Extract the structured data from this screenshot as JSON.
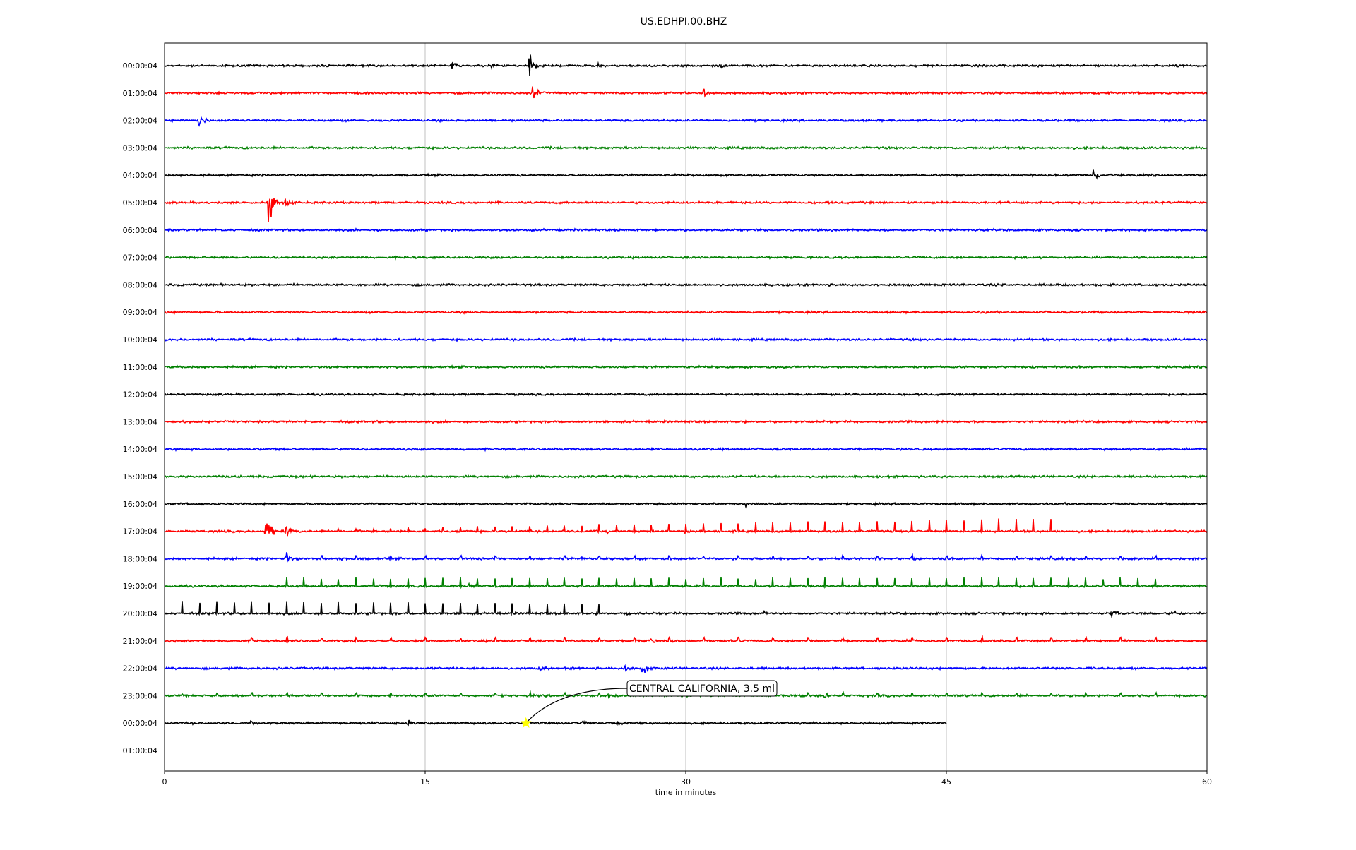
{
  "chart_data": {
    "type": "line",
    "title": "US.EDHPI.00.BHZ",
    "xlabel": "time in minutes",
    "xlim": [
      0,
      60
    ],
    "x_ticks": [
      0,
      15,
      30,
      45,
      60
    ],
    "x_tick_labels": [
      "0",
      "15",
      "30",
      "45",
      "60"
    ],
    "grid_x": true,
    "row_labels": [
      "00:00:04",
      "01:00:04",
      "02:00:04",
      "03:00:04",
      "04:00:04",
      "05:00:04",
      "06:00:04",
      "07:00:04",
      "08:00:04",
      "09:00:04",
      "10:00:04",
      "11:00:04",
      "12:00:04",
      "13:00:04",
      "14:00:04",
      "15:00:04",
      "16:00:04",
      "17:00:04",
      "18:00:04",
      "19:00:04",
      "20:00:04",
      "21:00:04",
      "22:00:04",
      "23:00:04",
      "00:00:04",
      "01:00:04"
    ],
    "row_colors": [
      "#000000",
      "#ff0000",
      "#0000ff",
      "#008000"
    ],
    "traces": [
      {
        "row": 0,
        "end_min": 60,
        "events": [
          {
            "t": 16.5,
            "a": 1.0
          },
          {
            "t": 18.8,
            "a": 0.6
          },
          {
            "t": 21.0,
            "a": 2.0
          },
          {
            "t": 25.0,
            "a": 0.4
          },
          {
            "t": 32.0,
            "a": 0.5
          }
        ]
      },
      {
        "row": 1,
        "end_min": 60,
        "events": [
          {
            "t": 21.2,
            "a": 1.2
          },
          {
            "t": 31.0,
            "a": 1.0
          }
        ]
      },
      {
        "row": 2,
        "end_min": 60,
        "events": [
          {
            "t": 2.0,
            "a": 1.0
          }
        ]
      },
      {
        "row": 3,
        "end_min": 60,
        "events": []
      },
      {
        "row": 4,
        "end_min": 60,
        "events": [
          {
            "t": 53.5,
            "a": 1.0
          }
        ]
      },
      {
        "row": 5,
        "end_min": 60,
        "events": [
          {
            "t": 6.0,
            "a": 3.0
          },
          {
            "t": 7.0,
            "a": 1.0
          }
        ]
      },
      {
        "row": 6,
        "end_min": 60,
        "events": []
      },
      {
        "row": 7,
        "end_min": 60,
        "events": []
      },
      {
        "row": 8,
        "end_min": 60,
        "events": []
      },
      {
        "row": 9,
        "end_min": 60,
        "events": []
      },
      {
        "row": 10,
        "end_min": 60,
        "events": []
      },
      {
        "row": 11,
        "end_min": 60,
        "events": []
      },
      {
        "row": 12,
        "end_min": 60,
        "events": []
      },
      {
        "row": 13,
        "end_min": 60,
        "events": []
      },
      {
        "row": 14,
        "end_min": 60,
        "events": []
      },
      {
        "row": 15,
        "end_min": 60,
        "events": []
      },
      {
        "row": 16,
        "end_min": 60,
        "events": [
          {
            "t": 33.5,
            "a": 0.4
          }
        ]
      },
      {
        "row": 17,
        "end_min": 60,
        "events": [
          {
            "t": 5.8,
            "a": 3.0
          },
          {
            "t": 7.0,
            "a": 0.8
          },
          {
            "t": 25.5,
            "a": 0.5
          },
          {
            "t": 30.0,
            "a": 0.4
          }
        ]
      },
      {
        "row": 18,
        "end_min": 60,
        "events": [
          {
            "t": 7.0,
            "a": 0.8
          },
          {
            "t": 10.0,
            "a": 0.4
          },
          {
            "t": 19.0,
            "a": 0.4
          },
          {
            "t": 24.0,
            "a": 0.4
          },
          {
            "t": 43.0,
            "a": 0.4
          }
        ]
      },
      {
        "row": 19,
        "end_min": 60,
        "events": [
          {
            "t": 17.5,
            "a": 0.5
          }
        ]
      },
      {
        "row": 20,
        "end_min": 60,
        "events": [
          {
            "t": 26.5,
            "a": 0.5
          },
          {
            "t": 34.5,
            "a": 0.4
          },
          {
            "t": 54.5,
            "a": 1.0
          },
          {
            "t": 58.0,
            "a": 0.5
          }
        ]
      },
      {
        "row": 21,
        "end_min": 60,
        "events": [
          {
            "t": 28.0,
            "a": 0.5
          },
          {
            "t": 39.0,
            "a": 0.5
          },
          {
            "t": 43.0,
            "a": 0.3
          }
        ]
      },
      {
        "row": 22,
        "end_min": 60,
        "events": [
          {
            "t": 21.5,
            "a": 0.8
          },
          {
            "t": 26.5,
            "a": 0.6
          },
          {
            "t": 27.5,
            "a": 1.2
          }
        ]
      },
      {
        "row": 23,
        "end_min": 60,
        "events": [
          {
            "t": 38.0,
            "a": 0.6
          },
          {
            "t": 25.5,
            "a": 0.3
          }
        ]
      },
      {
        "row": 24,
        "end_min": 45,
        "events": [
          {
            "t": 5.0,
            "a": 0.3
          },
          {
            "t": 14.0,
            "a": 0.4
          },
          {
            "t": 24.0,
            "a": 0.4
          },
          {
            "t": 26.0,
            "a": 0.7
          }
        ]
      }
    ],
    "periodic_pulses": [
      {
        "row": 17,
        "start_min": 10,
        "end_min": 52,
        "interval_min": 1.0,
        "amp_start": 0.15,
        "amp_end": 0.8
      },
      {
        "row": 18,
        "start_min": 7,
        "end_min": 58,
        "interval_min": 2.0,
        "amp_start": 0.15,
        "amp_end": 0.15
      },
      {
        "row": 19,
        "start_min": 7,
        "end_min": 58,
        "interval_min": 1.0,
        "amp_start": 0.5,
        "amp_end": 0.5
      },
      {
        "row": 20,
        "start_min": 1,
        "end_min": 25,
        "interval_min": 1.0,
        "amp_start": 0.75,
        "amp_end": 0.6
      },
      {
        "row": 21,
        "start_min": 5,
        "end_min": 58,
        "interval_min": 2.0,
        "amp_start": 0.2,
        "amp_end": 0.2
      },
      {
        "row": 23,
        "start_min": 1,
        "end_min": 58,
        "interval_min": 2.0,
        "amp_start": 0.15,
        "amp_end": 0.15
      }
    ],
    "annotation": {
      "text": "CENTRAL CALIFORNIA, 3.5 ml",
      "event_row": 24,
      "event_min": 20.8,
      "marker_color": "#ffff00"
    }
  }
}
